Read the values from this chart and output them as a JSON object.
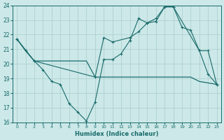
{
  "xlabel": "Humidex (Indice chaleur)",
  "bg_color": "#cce8e8",
  "grid_color": "#aacccc",
  "line_color": "#1a6b6b",
  "xlim": [
    -0.5,
    23.5
  ],
  "ylim": [
    16,
    24
  ],
  "xticks": [
    0,
    1,
    2,
    3,
    4,
    5,
    6,
    7,
    8,
    9,
    10,
    11,
    12,
    13,
    14,
    15,
    16,
    17,
    18,
    19,
    20,
    21,
    22,
    23
  ],
  "yticks": [
    16,
    17,
    18,
    19,
    20,
    21,
    22,
    23,
    24
  ],
  "line1_x": [
    0,
    1,
    2,
    3,
    4,
    5,
    6,
    7,
    8,
    9,
    10,
    11,
    12,
    13,
    14,
    15,
    16,
    17,
    18,
    21,
    22,
    23
  ],
  "line1_y": [
    21.7,
    20.9,
    20.2,
    19.6,
    18.8,
    18.6,
    17.3,
    16.7,
    16.1,
    17.4,
    20.3,
    20.3,
    20.7,
    21.6,
    23.1,
    22.8,
    23.1,
    23.9,
    23.9,
    20.9,
    19.3,
    18.6
  ],
  "line2_x": [
    0,
    1,
    2,
    3,
    4,
    5,
    6,
    7,
    8,
    9,
    10,
    11,
    12,
    13,
    14,
    15,
    16,
    17,
    18,
    19,
    20,
    21,
    22,
    23
  ],
  "line2_y": [
    21.7,
    20.9,
    20.2,
    20.2,
    20.2,
    20.2,
    20.2,
    20.2,
    20.2,
    19.1,
    19.1,
    19.1,
    19.1,
    19.1,
    19.1,
    19.1,
    19.1,
    19.1,
    19.1,
    19.1,
    19.1,
    18.8,
    18.7,
    18.6
  ],
  "line3_x": [
    0,
    2,
    9,
    10,
    11,
    13,
    14,
    15,
    16,
    17,
    18,
    19,
    20,
    21,
    22,
    23
  ],
  "line3_y": [
    21.7,
    20.2,
    19.1,
    21.8,
    21.5,
    21.8,
    22.2,
    22.8,
    22.9,
    23.9,
    23.9,
    22.5,
    22.3,
    20.9,
    20.9,
    18.6
  ]
}
